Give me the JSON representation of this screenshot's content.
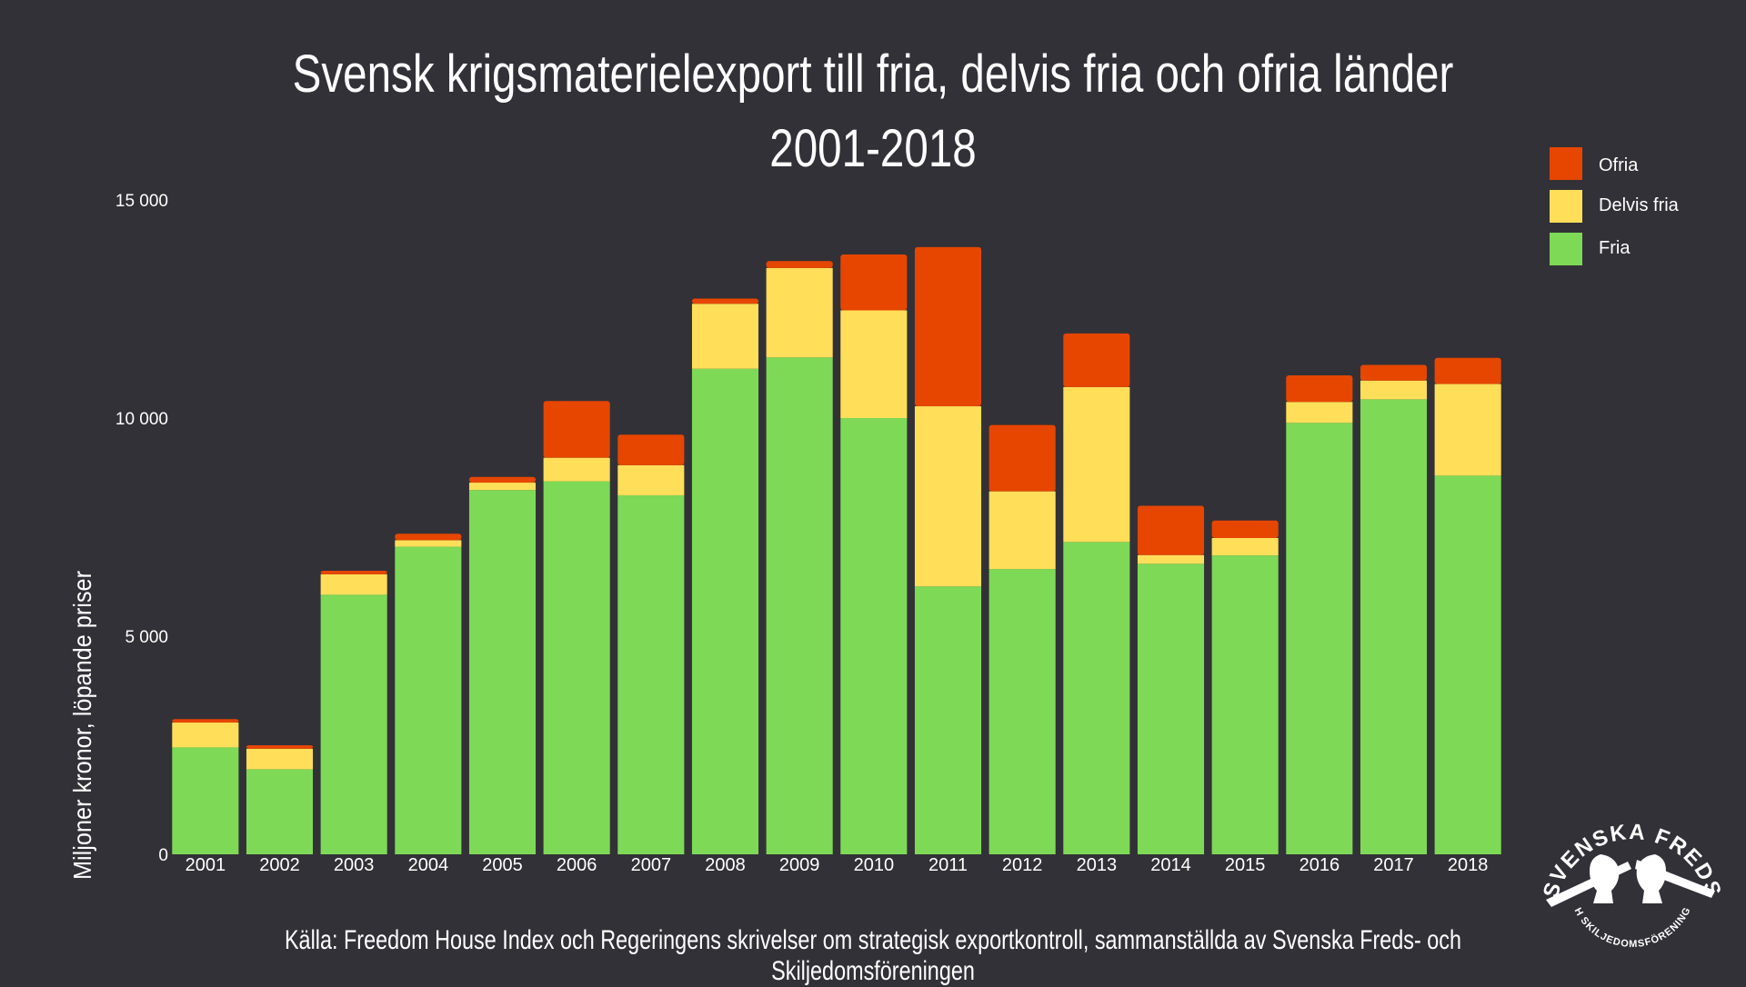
{
  "chart_data": {
    "type": "bar",
    "stacked": true,
    "title": "Svensk krigsmaterielexport till fria, delvis fria och ofria länder",
    "subtitle": "2001-2018",
    "ylabel": "Miljoner kronor, löpande priser",
    "xlabel": "",
    "ylim": [
      0,
      15000
    ],
    "yticks": [
      0,
      5000,
      10000,
      15000
    ],
    "ytick_labels": [
      "0",
      "5 000",
      "10 000",
      "15 000"
    ],
    "grid": false,
    "legend_position": "top-right",
    "categories": [
      "2001",
      "2002",
      "2003",
      "2004",
      "2005",
      "2006",
      "2007",
      "2008",
      "2009",
      "2010",
      "2011",
      "2012",
      "2013",
      "2014",
      "2015",
      "2016",
      "2017",
      "2018"
    ],
    "series": [
      {
        "name": "Fria",
        "color": "#7ed957",
        "values": [
          2450,
          1950,
          5950,
          7050,
          8350,
          8550,
          8230,
          11130,
          11390,
          10000,
          6140,
          6540,
          7160,
          6660,
          6850,
          9890,
          10430,
          8680
        ]
      },
      {
        "name": "Delvis fria",
        "color": "#ffde59",
        "values": [
          570,
          470,
          470,
          150,
          170,
          540,
          690,
          1490,
          2050,
          2470,
          4130,
          1780,
          3550,
          200,
          400,
          480,
          430,
          2100
        ]
      },
      {
        "name": "Ofria",
        "color": "#e64600",
        "values": [
          80,
          80,
          80,
          150,
          130,
          1300,
          700,
          120,
          160,
          1280,
          3650,
          1520,
          1230,
          1130,
          400,
          610,
          360,
          600
        ]
      }
    ],
    "legend_order": [
      "Ofria",
      "Delvis fria",
      "Fria"
    ]
  },
  "footer": {
    "source": "Källa: Freedom House Index och Regeringens skrivelser om strategisk exportkontroll, sammanställda av Svenska Freds- och Skiljedomsföreningen"
  },
  "logo": {
    "top_text": "SVENSKA FREDS",
    "bottom_text": "OCH SKILJEDOMSFÖRENINGEN"
  }
}
